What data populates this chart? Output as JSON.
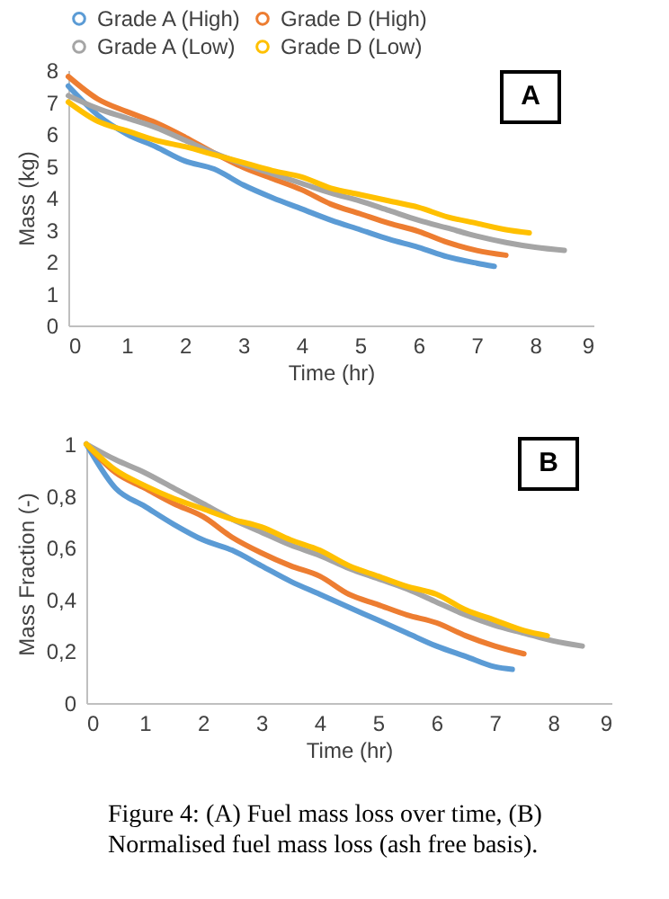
{
  "chart_data": [
    {
      "type": "line",
      "xlabel": "Time (hr)",
      "ylabel": "Mass (kg)",
      "annotations": [
        "A"
      ],
      "legend": "top",
      "xlim": [
        0,
        9
      ],
      "xticks": [
        0,
        1,
        2,
        3,
        4,
        5,
        6,
        7,
        8,
        9
      ],
      "ylim": [
        0,
        8
      ],
      "yticks": [
        0,
        1,
        2,
        3,
        4,
        5,
        6,
        7,
        8
      ],
      "series": [
        {
          "name": "Grade A (High)",
          "color": "#5b9bd5",
          "x": [
            0,
            0.5,
            1,
            1.5,
            2,
            2.5,
            3,
            3.5,
            4,
            4.5,
            5,
            5.5,
            6,
            6.5,
            7,
            7.3
          ],
          "values": [
            7.5,
            6.6,
            6.0,
            5.6,
            5.15,
            4.9,
            4.4,
            4.0,
            3.65,
            3.3,
            3.0,
            2.7,
            2.45,
            2.15,
            1.95,
            1.85
          ]
        },
        {
          "name": "Grade D (High)",
          "color": "#ed7d31",
          "x": [
            0,
            0.5,
            1,
            1.5,
            2,
            2.5,
            3,
            3.5,
            4,
            4.5,
            5,
            5.5,
            6,
            6.5,
            7,
            7.5
          ],
          "values": [
            7.8,
            7.1,
            6.7,
            6.35,
            5.9,
            5.4,
            4.95,
            4.6,
            4.25,
            3.8,
            3.5,
            3.2,
            2.95,
            2.6,
            2.35,
            2.2
          ]
        },
        {
          "name": "Grade A (Low)",
          "color": "#a5a5a5",
          "x": [
            0,
            0.5,
            1,
            1.5,
            2,
            2.5,
            3,
            3.5,
            4,
            4.5,
            5,
            5.5,
            6,
            6.5,
            7,
            7.5,
            8,
            8.5
          ],
          "values": [
            7.2,
            6.8,
            6.5,
            6.2,
            5.8,
            5.4,
            5.05,
            4.75,
            4.45,
            4.15,
            3.9,
            3.6,
            3.3,
            3.05,
            2.8,
            2.6,
            2.45,
            2.35
          ]
        },
        {
          "name": "Grade D (Low)",
          "color": "#ffc000",
          "x": [
            0,
            0.5,
            1,
            1.5,
            2,
            2.5,
            3,
            3.5,
            4,
            4.5,
            5,
            5.5,
            6,
            6.5,
            7,
            7.5,
            7.9
          ],
          "values": [
            7.0,
            6.4,
            6.1,
            5.8,
            5.6,
            5.35,
            5.1,
            4.85,
            4.65,
            4.3,
            4.1,
            3.9,
            3.7,
            3.4,
            3.2,
            3.0,
            2.9
          ]
        }
      ]
    },
    {
      "type": "line",
      "xlabel": "Time (hr)",
      "ylabel": "Mass Fraction (-)",
      "annotations": [
        "B",
        "Figure 4: (A) Fuel mass loss over time, (B) Normalised fuel mass loss (ash free basis)."
      ],
      "xlim": [
        0,
        9
      ],
      "xticks": [
        0,
        1,
        2,
        3,
        4,
        5,
        6,
        7,
        8,
        9
      ],
      "ylim": [
        0,
        1
      ],
      "yticks": [
        0,
        {
          "value": 0.2,
          "label": "0,2"
        },
        {
          "value": 0.4,
          "label": "0,4"
        },
        {
          "value": 0.6,
          "label": "0,6"
        },
        {
          "value": 0.8,
          "label": "0,8"
        },
        1
      ],
      "series": [
        {
          "color": "#5b9bd5",
          "x": [
            0,
            0.5,
            1,
            1.5,
            2,
            2.5,
            3,
            3.5,
            4,
            4.5,
            5,
            5.5,
            6,
            6.5,
            7,
            7.3
          ],
          "values": [
            1,
            0.83,
            0.76,
            0.69,
            0.63,
            0.59,
            0.53,
            0.47,
            0.42,
            0.37,
            0.32,
            0.27,
            0.22,
            0.18,
            0.14,
            0.13
          ]
        },
        {
          "color": "#ed7d31",
          "x": [
            0,
            0.5,
            1,
            1.5,
            2,
            2.5,
            3,
            3.5,
            4,
            4.5,
            5,
            5.5,
            6,
            6.5,
            7,
            7.5
          ],
          "values": [
            1,
            0.89,
            0.83,
            0.77,
            0.72,
            0.64,
            0.58,
            0.53,
            0.49,
            0.42,
            0.38,
            0.34,
            0.31,
            0.26,
            0.22,
            0.19
          ]
        },
        {
          "color": "#a5a5a5",
          "x": [
            0,
            0.5,
            1,
            1.5,
            2,
            2.5,
            3,
            3.5,
            4,
            4.5,
            5,
            5.5,
            6,
            6.5,
            7,
            7.5,
            8,
            8.5
          ],
          "values": [
            1,
            0.94,
            0.89,
            0.83,
            0.77,
            0.71,
            0.66,
            0.61,
            0.57,
            0.52,
            0.48,
            0.44,
            0.39,
            0.34,
            0.3,
            0.27,
            0.24,
            0.22
          ]
        },
        {
          "color": "#ffc000",
          "x": [
            0,
            0.5,
            1,
            1.5,
            2,
            2.5,
            3,
            3.5,
            4,
            4.5,
            5,
            5.5,
            6,
            6.5,
            7,
            7.5,
            7.9
          ],
          "values": [
            1,
            0.9,
            0.84,
            0.79,
            0.75,
            0.71,
            0.68,
            0.63,
            0.59,
            0.53,
            0.49,
            0.45,
            0.42,
            0.36,
            0.32,
            0.28,
            0.26
          ]
        }
      ]
    }
  ]
}
